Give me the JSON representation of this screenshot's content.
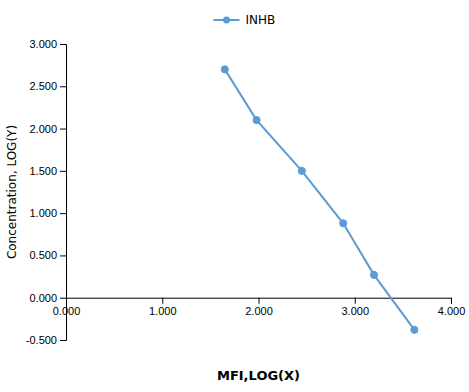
{
  "chart_data": {
    "type": "line",
    "xlabel": "MFI,LOG(X)",
    "ylabel": "Concentration, LOG(Y)",
    "x": [
      1.65,
      1.98,
      2.45,
      2.88,
      3.2,
      3.62
    ],
    "series": [
      {
        "name": "INHB",
        "color": "#5b9bd5",
        "marker": "circle",
        "line_style": "solid",
        "values": [
          2.7,
          2.1,
          1.5,
          0.88,
          0.27,
          -0.38
        ]
      }
    ],
    "xlim": [
      0.0,
      4.0
    ],
    "ylim": [
      -0.5,
      3.0
    ],
    "xticks": [
      {
        "value": 0,
        "label": "0.000"
      },
      {
        "value": 1,
        "label": "1.000"
      },
      {
        "value": 2,
        "label": "2.000"
      },
      {
        "value": 3,
        "label": "3.000"
      },
      {
        "value": 4,
        "label": "4.000"
      }
    ],
    "yticks": [
      {
        "value": -0.5,
        "label": "-0.500"
      },
      {
        "value": 0,
        "label": "0.000"
      },
      {
        "value": 0.5,
        "label": "0.500"
      },
      {
        "value": 1,
        "label": "1.000"
      },
      {
        "value": 1.5,
        "label": "1.500"
      },
      {
        "value": 2,
        "label": "2.000"
      },
      {
        "value": 2.5,
        "label": "2.500"
      },
      {
        "value": 3,
        "label": "3.000"
      }
    ],
    "grid": false,
    "legend": "top"
  }
}
